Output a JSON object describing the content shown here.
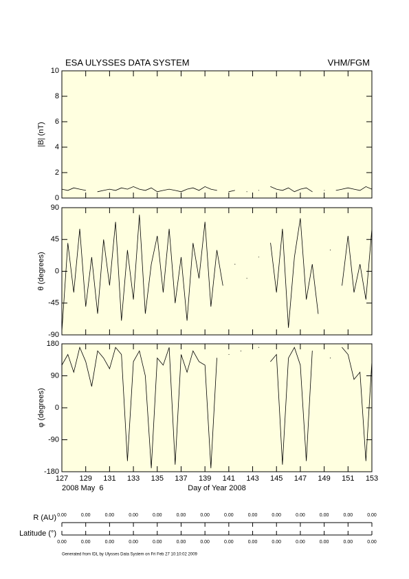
{
  "header": {
    "title": "ESA ULYSSES DATA SYSTEM",
    "instrument": "VHM/FGM"
  },
  "chart_data": [
    {
      "type": "line",
      "ylabel": "|B| (nT)",
      "ylim": [
        0,
        10
      ],
      "yticks": [
        0,
        2,
        4,
        6,
        8,
        10
      ],
      "xlim": [
        127,
        153
      ],
      "xticks": [
        127,
        129,
        131,
        133,
        135,
        137,
        139,
        141,
        143,
        145,
        147,
        149,
        151,
        153
      ],
      "x": [
        127,
        127.5,
        128,
        128.5,
        129,
        129.5,
        130,
        130.5,
        131,
        131.5,
        132,
        132.5,
        133,
        133.5,
        134,
        134.5,
        135,
        135.5,
        136,
        136.5,
        137,
        137.5,
        138,
        138.5,
        139,
        139.5,
        140,
        140.5,
        141,
        141.5,
        142,
        142.5,
        143,
        143.5,
        144,
        144.5,
        145,
        145.5,
        146,
        146.5,
        147,
        147.5,
        148,
        148.5,
        149,
        149.5,
        150,
        150.5,
        151,
        151.5,
        152,
        152.5,
        153
      ],
      "series": [
        {
          "color": "#000000",
          "values": [
            0.7,
            0.6,
            0.8,
            0.7,
            0.6,
            null,
            0.5,
            0.6,
            0.7,
            0.6,
            0.8,
            0.7,
            0.9,
            0.7,
            0.6,
            0.8,
            0.5,
            0.6,
            0.7,
            0.6,
            0.5,
            0.7,
            0.8,
            0.6,
            0.9,
            0.7,
            0.6,
            null,
            0.5,
            0.6,
            null,
            0.5,
            null,
            0.6,
            null,
            0.9,
            0.7,
            0.6,
            0.8,
            0.5,
            0.7,
            0.8,
            0.5,
            null,
            0.6,
            null,
            0.6,
            0.7,
            0.8,
            0.7,
            0.6,
            0.9,
            0.7
          ]
        }
      ]
    },
    {
      "type": "line",
      "ylabel": "θ (degrees)",
      "ylim": [
        -90,
        90
      ],
      "yticks": [
        -90,
        -45,
        0,
        45,
        90
      ],
      "xlim": [
        127,
        153
      ],
      "xticks": [
        127,
        129,
        131,
        133,
        135,
        137,
        139,
        141,
        143,
        145,
        147,
        149,
        151,
        153
      ],
      "x": [
        127,
        127.5,
        128,
        128.5,
        129,
        129.5,
        130,
        130.5,
        131,
        131.5,
        132,
        132.5,
        133,
        133.5,
        134,
        134.5,
        135,
        135.5,
        136,
        136.5,
        137,
        137.5,
        138,
        138.5,
        139,
        139.5,
        140,
        140.5,
        141,
        141.5,
        142,
        142.5,
        143,
        143.5,
        144,
        144.5,
        145,
        145.5,
        146,
        146.5,
        147,
        147.5,
        148,
        148.5,
        149,
        149.5,
        150,
        150.5,
        151,
        151.5,
        152,
        152.5,
        153
      ],
      "series": [
        {
          "color": "#000000",
          "values": [
            -85,
            40,
            -30,
            60,
            -50,
            20,
            -60,
            45,
            -20,
            70,
            -70,
            30,
            -40,
            80,
            -60,
            10,
            50,
            -30,
            60,
            -45,
            20,
            -70,
            40,
            -10,
            70,
            -50,
            30,
            -20,
            null,
            10,
            null,
            -10,
            null,
            20,
            null,
            40,
            -30,
            60,
            -80,
            20,
            75,
            -40,
            10,
            -60,
            null,
            30,
            null,
            -20,
            50,
            -30,
            10,
            -40,
            60
          ]
        }
      ]
    },
    {
      "type": "line",
      "ylabel": "φ (degrees)",
      "ylim": [
        -180,
        180
      ],
      "yticks": [
        -180,
        -90,
        0,
        90,
        180
      ],
      "xlim": [
        127,
        153
      ],
      "xticks": [
        127,
        129,
        131,
        133,
        135,
        137,
        139,
        141,
        143,
        145,
        147,
        149,
        151,
        153
      ],
      "xlabel": "Day of Year 2008",
      "date_label": "2008 May  6",
      "x": [
        127,
        127.5,
        128,
        128.5,
        129,
        129.5,
        130,
        130.5,
        131,
        131.5,
        132,
        132.5,
        133,
        133.5,
        134,
        134.5,
        135,
        135.5,
        136,
        136.5,
        137,
        137.5,
        138,
        138.5,
        139,
        139.5,
        140,
        140.5,
        141,
        141.5,
        142,
        142.5,
        143,
        143.5,
        144,
        144.5,
        145,
        145.5,
        146,
        146.5,
        147,
        147.5,
        148,
        148.5,
        149,
        149.5,
        150,
        150.5,
        151,
        151.5,
        152,
        152.5,
        153
      ],
      "series": [
        {
          "color": "#000000",
          "values": [
            120,
            150,
            100,
            170,
            130,
            60,
            160,
            140,
            110,
            170,
            150,
            -150,
            130,
            160,
            90,
            -170,
            140,
            120,
            170,
            -160,
            150,
            100,
            160,
            130,
            120,
            -170,
            140,
            null,
            150,
            null,
            160,
            null,
            null,
            170,
            null,
            130,
            150,
            -160,
            140,
            170,
            120,
            -150,
            160,
            null,
            null,
            140,
            null,
            170,
            150,
            80,
            100,
            -150,
            130
          ]
        }
      ]
    }
  ],
  "ephemeris": {
    "rows": [
      {
        "label": "R (AU)",
        "values": [
          "0.00",
          "0.00",
          "0.00",
          "0.00",
          "0.00",
          "0.00",
          "0.00",
          "0.00",
          "0.00",
          "0.00",
          "0.00",
          "0.00",
          "0.00",
          "0.00"
        ]
      },
      {
        "label": "Latitude (°)",
        "values": [
          "0.00",
          "0.00",
          "0.00",
          "0.00",
          "0.00",
          "0.00",
          "0.00",
          "0.00",
          "0.00",
          "0.00",
          "0.00",
          "0.00",
          "0.00",
          "0.00"
        ]
      }
    ]
  },
  "footer": "Generated from IDL by Ulysses Data System on Fri Feb 27 10:10:02 2009"
}
